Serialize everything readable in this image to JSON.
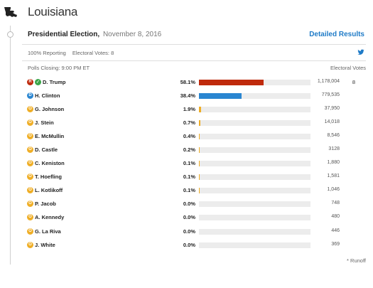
{
  "header": {
    "state_name": "Louisiana",
    "state_icon": "louisiana-state-silhouette"
  },
  "election": {
    "title": "Presidential Election,",
    "date": "November 8, 2016",
    "detailed_link": "Detailed Results"
  },
  "status": {
    "reporting": "100% Reporting",
    "electoral_votes": "Electoral Votes: 8",
    "share_icon": "twitter-icon"
  },
  "table": {
    "polls_closing": "Polls Closing: 9:00 PM ET",
    "ev_header": "Electoral Votes",
    "winner_electoral_votes": "8"
  },
  "colors": {
    "republican": "#bf2a0c",
    "democrat": "#2a86d1",
    "other": "#efae26",
    "winner_check": "#3aa54a",
    "link": "#1f7bc7",
    "bar_track": "#ececec"
  },
  "candidates": [
    {
      "name": "D. Trump",
      "party": "R",
      "party_color": "#bf2a0c",
      "winner": true,
      "pct": "58.1%",
      "pct_value": 58.1,
      "votes": "1,178,004"
    },
    {
      "name": "H. Clinton",
      "party": "D",
      "party_color": "#2a86d1",
      "winner": false,
      "pct": "38.4%",
      "pct_value": 38.4,
      "votes": "779,535"
    },
    {
      "name": "G. Johnson",
      "party": "O",
      "party_color": "#efae26",
      "winner": false,
      "pct": "1.9%",
      "pct_value": 1.9,
      "votes": "37,950"
    },
    {
      "name": "J. Stein",
      "party": "O",
      "party_color": "#efae26",
      "winner": false,
      "pct": "0.7%",
      "pct_value": 0.7,
      "votes": "14,018"
    },
    {
      "name": "E. McMullin",
      "party": "O",
      "party_color": "#efae26",
      "winner": false,
      "pct": "0.4%",
      "pct_value": 0.4,
      "votes": "8,546"
    },
    {
      "name": "D. Castle",
      "party": "O",
      "party_color": "#efae26",
      "winner": false,
      "pct": "0.2%",
      "pct_value": 0.2,
      "votes": "3128"
    },
    {
      "name": "C. Keniston",
      "party": "O",
      "party_color": "#efae26",
      "winner": false,
      "pct": "0.1%",
      "pct_value": 0.1,
      "votes": "1,880"
    },
    {
      "name": "T. Hoefling",
      "party": "O",
      "party_color": "#efae26",
      "winner": false,
      "pct": "0.1%",
      "pct_value": 0.1,
      "votes": "1,581"
    },
    {
      "name": "L. Kotlikoff",
      "party": "O",
      "party_color": "#efae26",
      "winner": false,
      "pct": "0.1%",
      "pct_value": 0.1,
      "votes": "1,046"
    },
    {
      "name": "P. Jacob",
      "party": "O",
      "party_color": "#efae26",
      "winner": false,
      "pct": "0.0%",
      "pct_value": 0.0,
      "votes": "748"
    },
    {
      "name": "A. Kennedy",
      "party": "O",
      "party_color": "#efae26",
      "winner": false,
      "pct": "0.0%",
      "pct_value": 0.0,
      "votes": "480"
    },
    {
      "name": "G. La Riva",
      "party": "O",
      "party_color": "#efae26",
      "winner": false,
      "pct": "0.0%",
      "pct_value": 0.0,
      "votes": "446"
    },
    {
      "name": "J. White",
      "party": "O",
      "party_color": "#efae26",
      "winner": false,
      "pct": "0.0%",
      "pct_value": 0.0,
      "votes": "369"
    }
  ],
  "footer": {
    "runoff_note": "* Runoff"
  }
}
